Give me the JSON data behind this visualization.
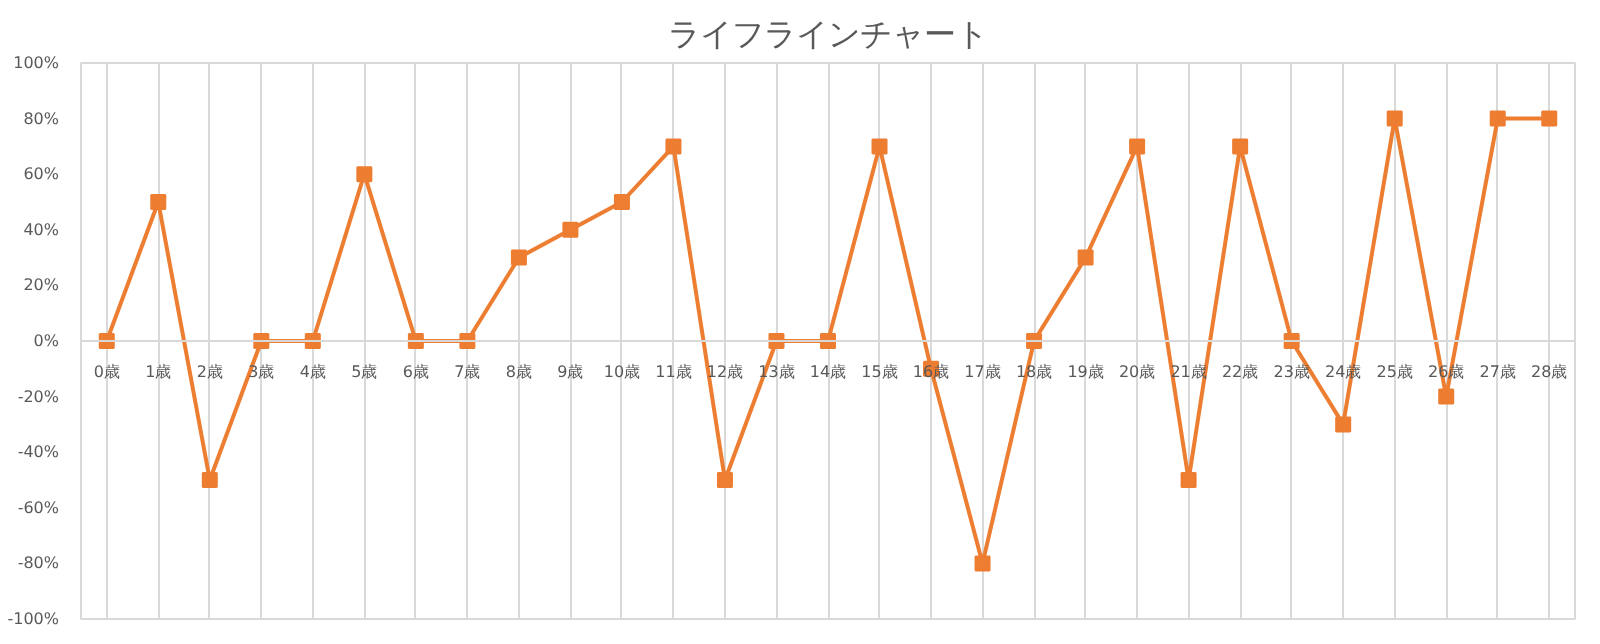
{
  "chart_data": {
    "type": "line",
    "title": "ライフラインチャート",
    "categories": [
      "0歳",
      "1歳",
      "2歳",
      "3歳",
      "4歳",
      "5歳",
      "6歳",
      "7歳",
      "8歳",
      "9歳",
      "10歳",
      "11歳",
      "12歳",
      "13歳",
      "14歳",
      "15歳",
      "16歳",
      "17歳",
      "18歳",
      "19歳",
      "20歳",
      "21歳",
      "22歳",
      "23歳",
      "24歳",
      "25歳",
      "26歳",
      "27歳",
      "28歳"
    ],
    "series": [
      {
        "color": "#ed7d31",
        "values": [
          0,
          50,
          -50,
          0,
          0,
          60,
          0,
          0,
          30,
          40,
          50,
          70,
          -50,
          0,
          0,
          70,
          -10,
          -80,
          0,
          30,
          70,
          -50,
          70,
          0,
          -30,
          80,
          -20,
          80,
          80
        ]
      }
    ],
    "ylim": [
      -100,
      100
    ],
    "yticks": [
      {
        "value": -100,
        "label": "-100%"
      },
      {
        "value": -80,
        "label": "-80%"
      },
      {
        "value": -60,
        "label": "-60%"
      },
      {
        "value": -40,
        "label": "-40%"
      },
      {
        "value": -20,
        "label": "-20%"
      },
      {
        "value": 0,
        "label": "0%"
      },
      {
        "value": 20,
        "label": "20%"
      },
      {
        "value": 40,
        "label": "40%"
      },
      {
        "value": 60,
        "label": "60%"
      },
      {
        "value": 80,
        "label": "80%"
      },
      {
        "value": 100,
        "label": "100%"
      }
    ],
    "grid": "x",
    "marker": "square",
    "line_style": "solid"
  }
}
